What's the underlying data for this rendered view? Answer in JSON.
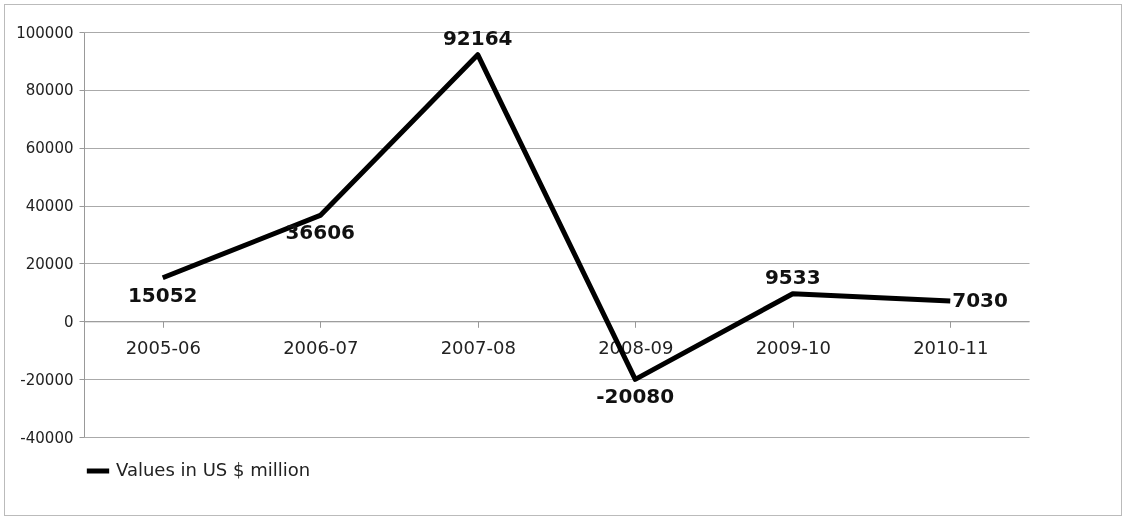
{
  "chart_data": {
    "type": "line",
    "categories": [
      "2005-06",
      "2006-07",
      "2007-08",
      "2008-09",
      "2009-10",
      "2010-11"
    ],
    "series": [
      {
        "name": "Values in  US $ million",
        "color": "#000000",
        "values": [
          15052,
          36606,
          92164,
          -20080,
          9533,
          7030
        ]
      }
    ],
    "ylim": [
      -40000,
      100000
    ],
    "yticks": [
      -40000,
      -20000,
      0,
      20000,
      40000,
      60000,
      80000,
      100000
    ],
    "grid": "y",
    "legend": "bottom",
    "data_labels": true,
    "marker": "none",
    "line_style": "solid"
  }
}
